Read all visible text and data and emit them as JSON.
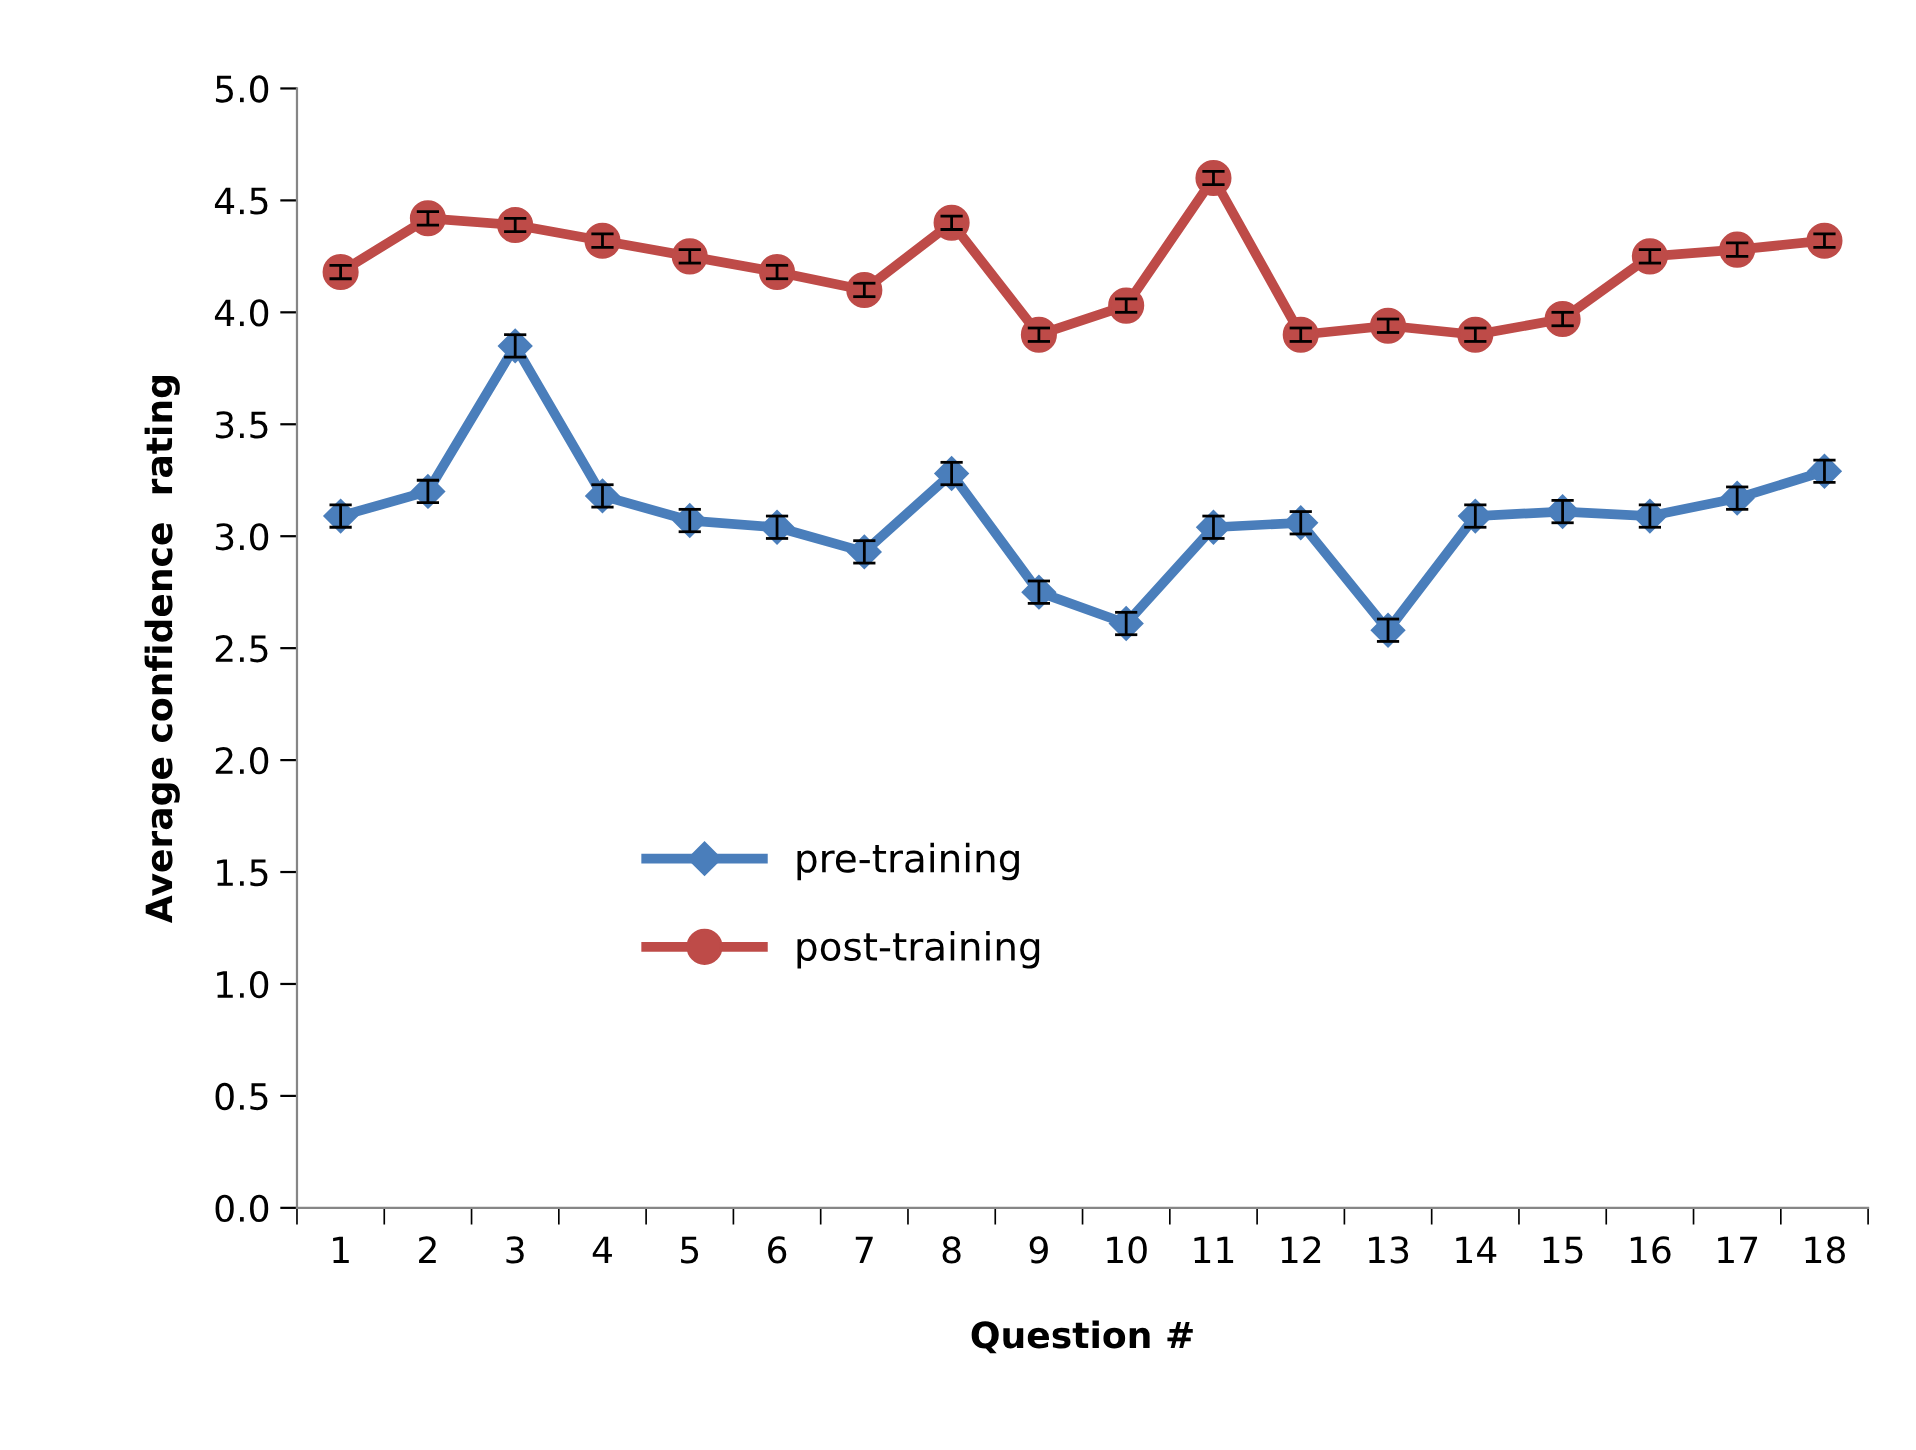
{
  "chart_data": {
    "type": "line",
    "xlabel": "Question #",
    "ylabel": "Average confidence  rating",
    "categories": [
      "1",
      "2",
      "3",
      "4",
      "5",
      "6",
      "7",
      "8",
      "9",
      "10",
      "11",
      "12",
      "13",
      "14",
      "15",
      "16",
      "17",
      "18"
    ],
    "series": [
      {
        "name": "pre-training",
        "color": "#4a7ebb",
        "marker": "diamond",
        "values": [
          3.09,
          3.2,
          3.85,
          3.18,
          3.07,
          3.04,
          2.93,
          3.28,
          2.75,
          2.61,
          3.04,
          3.06,
          2.58,
          3.09,
          3.11,
          3.09,
          3.17,
          3.29
        ],
        "errors": [
          0.05,
          0.05,
          0.05,
          0.05,
          0.05,
          0.05,
          0.05,
          0.05,
          0.05,
          0.05,
          0.05,
          0.05,
          0.05,
          0.05,
          0.05,
          0.05,
          0.05,
          0.05
        ]
      },
      {
        "name": "post-training",
        "color": "#be4b48",
        "marker": "circle",
        "values": [
          4.18,
          4.42,
          4.39,
          4.32,
          4.25,
          4.18,
          4.1,
          4.4,
          3.9,
          4.03,
          4.6,
          3.9,
          3.94,
          3.9,
          3.97,
          4.25,
          4.28,
          4.32
        ],
        "errors": [
          0.03,
          0.03,
          0.03,
          0.03,
          0.03,
          0.03,
          0.03,
          0.03,
          0.03,
          0.03,
          0.03,
          0.03,
          0.03,
          0.03,
          0.03,
          0.03,
          0.03,
          0.03
        ]
      }
    ],
    "ylim": [
      0,
      5
    ],
    "yticks": [
      {
        "value": 0,
        "label": "0.0"
      },
      {
        "value": 0.5,
        "label": "0.5"
      },
      {
        "value": 1,
        "label": "1.0"
      },
      {
        "value": 1.5,
        "label": "1.5"
      },
      {
        "value": 2,
        "label": "2.0"
      },
      {
        "value": 2.5,
        "label": "2.5"
      },
      {
        "value": 3,
        "label": "3.0"
      },
      {
        "value": 3.5,
        "label": "3.5"
      },
      {
        "value": 4,
        "label": "4.0"
      },
      {
        "value": 4.5,
        "label": "4.5"
      },
      {
        "value": 5,
        "label": "5.0"
      }
    ],
    "grid": false,
    "legend": "bottom",
    "line_style": "solid"
  }
}
